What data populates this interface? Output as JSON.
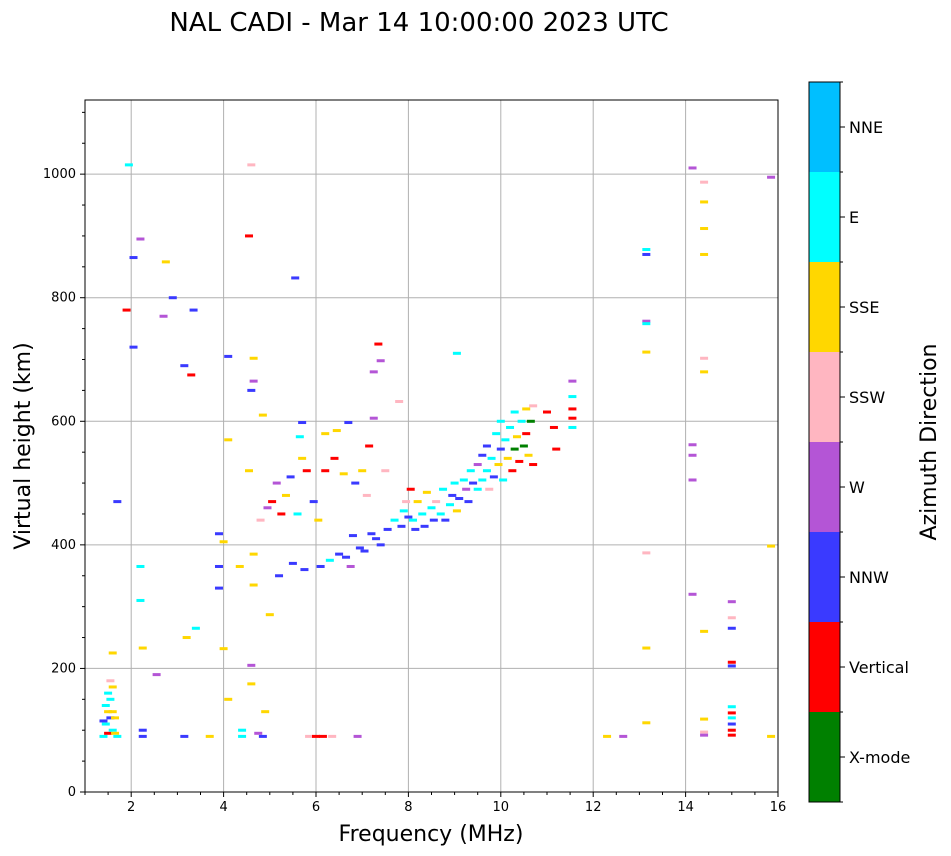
{
  "chart_data": {
    "type": "scatter",
    "title": "NAL CADI - Mar 14 10:00:00 2023 UTC",
    "xlabel": "Frequency (MHz)",
    "ylabel": "Virtual height (km)",
    "xlim": [
      1,
      16
    ],
    "ylim": [
      0,
      1120
    ],
    "xticks": [
      2,
      4,
      6,
      8,
      10,
      12,
      14,
      16
    ],
    "yticks": [
      0,
      200,
      400,
      600,
      800,
      1000
    ],
    "grid": true,
    "colorbar": {
      "label": "Azimuth Direction",
      "categories": [
        {
          "name": "X-mode",
          "color": "#008000"
        },
        {
          "name": "Vertical",
          "color": "#ff0000"
        },
        {
          "name": "NNW",
          "color": "#3a3aff"
        },
        {
          "name": "W",
          "color": "#b455d6"
        },
        {
          "name": "SSW",
          "color": "#ffb6c1"
        },
        {
          "name": "SSE",
          "color": "#ffd700"
        },
        {
          "name": "E",
          "color": "#00ffff"
        },
        {
          "name": "NNE",
          "color": "#00bfff"
        }
      ]
    },
    "echoes": [
      {
        "f": 1.4,
        "h": 90,
        "dir": "E"
      },
      {
        "f": 1.45,
        "h": 110,
        "dir": "E"
      },
      {
        "f": 1.5,
        "h": 130,
        "dir": "SSE"
      },
      {
        "f": 1.55,
        "h": 150,
        "dir": "E"
      },
      {
        "f": 1.6,
        "h": 170,
        "dir": "SSE"
      },
      {
        "f": 1.5,
        "h": 95,
        "dir": "Vertical"
      },
      {
        "f": 1.6,
        "h": 100,
        "dir": "E"
      },
      {
        "f": 1.55,
        "h": 120,
        "dir": "NNW"
      },
      {
        "f": 1.65,
        "h": 95,
        "dir": "SSE"
      },
      {
        "f": 1.45,
        "h": 140,
        "dir": "E"
      },
      {
        "f": 1.6,
        "h": 130,
        "dir": "SSE"
      },
      {
        "f": 1.55,
        "h": 180,
        "dir": "SSW"
      },
      {
        "f": 1.65,
        "h": 120,
        "dir": "SSE"
      },
      {
        "f": 1.7,
        "h": 90,
        "dir": "E"
      },
      {
        "f": 1.5,
        "h": 160,
        "dir": "E"
      },
      {
        "f": 1.4,
        "h": 115,
        "dir": "NNW"
      },
      {
        "f": 1.6,
        "h": 225,
        "dir": "SSE"
      },
      {
        "f": 1.7,
        "h": 470,
        "dir": "NNW"
      },
      {
        "f": 1.9,
        "h": 780,
        "dir": "Vertical"
      },
      {
        "f": 1.95,
        "h": 1015,
        "dir": "E"
      },
      {
        "f": 2.05,
        "h": 865,
        "dir": "NNW"
      },
      {
        "f": 2.05,
        "h": 720,
        "dir": "NNW"
      },
      {
        "f": 2.2,
        "h": 895,
        "dir": "W"
      },
      {
        "f": 2.2,
        "h": 365,
        "dir": "E"
      },
      {
        "f": 2.2,
        "h": 310,
        "dir": "E"
      },
      {
        "f": 2.25,
        "h": 100,
        "dir": "NNW"
      },
      {
        "f": 2.25,
        "h": 90,
        "dir": "NNW"
      },
      {
        "f": 2.25,
        "h": 233,
        "dir": "SSE"
      },
      {
        "f": 2.55,
        "h": 190,
        "dir": "W"
      },
      {
        "f": 2.75,
        "h": 858,
        "dir": "SSE"
      },
      {
        "f": 2.7,
        "h": 770,
        "dir": "W"
      },
      {
        "f": 2.9,
        "h": 800,
        "dir": "NNW"
      },
      {
        "f": 3.15,
        "h": 690,
        "dir": "NNW"
      },
      {
        "f": 3.3,
        "h": 675,
        "dir": "Vertical"
      },
      {
        "f": 3.35,
        "h": 780,
        "dir": "NNW"
      },
      {
        "f": 3.15,
        "h": 90,
        "dir": "NNW"
      },
      {
        "f": 3.2,
        "h": 250,
        "dir": "SSE"
      },
      {
        "f": 3.4,
        "h": 265,
        "dir": "E"
      },
      {
        "f": 3.7,
        "h": 90,
        "dir": "SSE"
      },
      {
        "f": 3.9,
        "h": 418,
        "dir": "NNW"
      },
      {
        "f": 3.9,
        "h": 365,
        "dir": "NNW"
      },
      {
        "f": 3.9,
        "h": 330,
        "dir": "NNW"
      },
      {
        "f": 4.0,
        "h": 405,
        "dir": "SSE"
      },
      {
        "f": 4.0,
        "h": 232,
        "dir": "SSE"
      },
      {
        "f": 4.1,
        "h": 705,
        "dir": "NNW"
      },
      {
        "f": 4.1,
        "h": 570,
        "dir": "SSE"
      },
      {
        "f": 4.1,
        "h": 150,
        "dir": "SSE"
      },
      {
        "f": 4.35,
        "h": 365,
        "dir": "SSE"
      },
      {
        "f": 4.4,
        "h": 100,
        "dir": "E"
      },
      {
        "f": 4.4,
        "h": 90,
        "dir": "E"
      },
      {
        "f": 4.55,
        "h": 900,
        "dir": "Vertical"
      },
      {
        "f": 4.6,
        "h": 1015,
        "dir": "SSW"
      },
      {
        "f": 4.6,
        "h": 650,
        "dir": "NNW"
      },
      {
        "f": 4.65,
        "h": 665,
        "dir": "W"
      },
      {
        "f": 4.65,
        "h": 702,
        "dir": "SSE"
      },
      {
        "f": 4.55,
        "h": 520,
        "dir": "SSE"
      },
      {
        "f": 4.6,
        "h": 205,
        "dir": "W"
      },
      {
        "f": 4.6,
        "h": 175,
        "dir": "SSE"
      },
      {
        "f": 4.65,
        "h": 385,
        "dir": "SSE"
      },
      {
        "f": 4.65,
        "h": 335,
        "dir": "SSE"
      },
      {
        "f": 4.75,
        "h": 95,
        "dir": "W"
      },
      {
        "f": 4.8,
        "h": 440,
        "dir": "SSW"
      },
      {
        "f": 4.85,
        "h": 90,
        "dir": "NNW"
      },
      {
        "f": 4.85,
        "h": 610,
        "dir": "SSE"
      },
      {
        "f": 4.9,
        "h": 130,
        "dir": "SSE"
      },
      {
        "f": 4.95,
        "h": 460,
        "dir": "W"
      },
      {
        "f": 5.0,
        "h": 287,
        "dir": "SSE"
      },
      {
        "f": 5.05,
        "h": 470,
        "dir": "Vertical"
      },
      {
        "f": 5.15,
        "h": 500,
        "dir": "W"
      },
      {
        "f": 5.2,
        "h": 350,
        "dir": "NNW"
      },
      {
        "f": 5.25,
        "h": 450,
        "dir": "Vertical"
      },
      {
        "f": 5.35,
        "h": 480,
        "dir": "SSE"
      },
      {
        "f": 5.45,
        "h": 510,
        "dir": "NNW"
      },
      {
        "f": 5.5,
        "h": 370,
        "dir": "NNW"
      },
      {
        "f": 5.55,
        "h": 832,
        "dir": "NNW"
      },
      {
        "f": 5.6,
        "h": 450,
        "dir": "E"
      },
      {
        "f": 5.65,
        "h": 575,
        "dir": "E"
      },
      {
        "f": 5.7,
        "h": 540,
        "dir": "SSE"
      },
      {
        "f": 5.7,
        "h": 598,
        "dir": "NNW"
      },
      {
        "f": 5.75,
        "h": 360,
        "dir": "NNW"
      },
      {
        "f": 5.8,
        "h": 520,
        "dir": "Vertical"
      },
      {
        "f": 5.85,
        "h": 90,
        "dir": "SSW"
      },
      {
        "f": 5.95,
        "h": 470,
        "dir": "NNW"
      },
      {
        "f": 6.0,
        "h": 90,
        "dir": "Vertical"
      },
      {
        "f": 6.05,
        "h": 440,
        "dir": "SSE"
      },
      {
        "f": 6.1,
        "h": 365,
        "dir": "NNW"
      },
      {
        "f": 6.15,
        "h": 90,
        "dir": "Vertical"
      },
      {
        "f": 6.2,
        "h": 520,
        "dir": "Vertical"
      },
      {
        "f": 6.2,
        "h": 580,
        "dir": "SSE"
      },
      {
        "f": 6.3,
        "h": 375,
        "dir": "E"
      },
      {
        "f": 6.35,
        "h": 90,
        "dir": "SSW"
      },
      {
        "f": 6.4,
        "h": 540,
        "dir": "Vertical"
      },
      {
        "f": 6.45,
        "h": 585,
        "dir": "SSE"
      },
      {
        "f": 6.5,
        "h": 385,
        "dir": "NNW"
      },
      {
        "f": 6.6,
        "h": 515,
        "dir": "SSE"
      },
      {
        "f": 6.65,
        "h": 380,
        "dir": "NNW"
      },
      {
        "f": 6.7,
        "h": 598,
        "dir": "NNW"
      },
      {
        "f": 6.75,
        "h": 365,
        "dir": "W"
      },
      {
        "f": 6.8,
        "h": 415,
        "dir": "NNW"
      },
      {
        "f": 6.85,
        "h": 500,
        "dir": "NNW"
      },
      {
        "f": 6.9,
        "h": 90,
        "dir": "W"
      },
      {
        "f": 6.95,
        "h": 395,
        "dir": "NNW"
      },
      {
        "f": 7.0,
        "h": 520,
        "dir": "SSE"
      },
      {
        "f": 7.05,
        "h": 390,
        "dir": "NNW"
      },
      {
        "f": 7.1,
        "h": 480,
        "dir": "SSW"
      },
      {
        "f": 7.15,
        "h": 560,
        "dir": "Vertical"
      },
      {
        "f": 7.2,
        "h": 418,
        "dir": "NNW"
      },
      {
        "f": 7.25,
        "h": 680,
        "dir": "W"
      },
      {
        "f": 7.25,
        "h": 605,
        "dir": "W"
      },
      {
        "f": 7.3,
        "h": 410,
        "dir": "NNW"
      },
      {
        "f": 7.35,
        "h": 725,
        "dir": "Vertical"
      },
      {
        "f": 7.4,
        "h": 698,
        "dir": "W"
      },
      {
        "f": 7.4,
        "h": 400,
        "dir": "NNW"
      },
      {
        "f": 7.5,
        "h": 520,
        "dir": "SSW"
      },
      {
        "f": 7.55,
        "h": 425,
        "dir": "NNW"
      },
      {
        "f": 7.7,
        "h": 440,
        "dir": "E"
      },
      {
        "f": 7.8,
        "h": 632,
        "dir": "SSW"
      },
      {
        "f": 7.85,
        "h": 430,
        "dir": "NNW"
      },
      {
        "f": 7.9,
        "h": 455,
        "dir": "E"
      },
      {
        "f": 7.95,
        "h": 470,
        "dir": "SSW"
      },
      {
        "f": 8.0,
        "h": 445,
        "dir": "NNW"
      },
      {
        "f": 8.05,
        "h": 490,
        "dir": "Vertical"
      },
      {
        "f": 8.1,
        "h": 440,
        "dir": "E"
      },
      {
        "f": 8.15,
        "h": 425,
        "dir": "NNW"
      },
      {
        "f": 8.2,
        "h": 470,
        "dir": "SSE"
      },
      {
        "f": 8.3,
        "h": 450,
        "dir": "E"
      },
      {
        "f": 8.35,
        "h": 430,
        "dir": "NNW"
      },
      {
        "f": 8.4,
        "h": 485,
        "dir": "SSE"
      },
      {
        "f": 8.5,
        "h": 460,
        "dir": "E"
      },
      {
        "f": 8.55,
        "h": 440,
        "dir": "NNW"
      },
      {
        "f": 8.6,
        "h": 470,
        "dir": "SSW"
      },
      {
        "f": 8.7,
        "h": 450,
        "dir": "E"
      },
      {
        "f": 8.75,
        "h": 490,
        "dir": "E"
      },
      {
        "f": 8.8,
        "h": 440,
        "dir": "NNW"
      },
      {
        "f": 8.9,
        "h": 465,
        "dir": "E"
      },
      {
        "f": 8.95,
        "h": 480,
        "dir": "NNW"
      },
      {
        "f": 9.0,
        "h": 500,
        "dir": "E"
      },
      {
        "f": 9.05,
        "h": 455,
        "dir": "SSE"
      },
      {
        "f": 9.05,
        "h": 710,
        "dir": "E"
      },
      {
        "f": 9.1,
        "h": 475,
        "dir": "NNW"
      },
      {
        "f": 9.2,
        "h": 505,
        "dir": "E"
      },
      {
        "f": 9.25,
        "h": 490,
        "dir": "W"
      },
      {
        "f": 9.3,
        "h": 470,
        "dir": "NNW"
      },
      {
        "f": 9.35,
        "h": 520,
        "dir": "E"
      },
      {
        "f": 9.4,
        "h": 500,
        "dir": "NNW"
      },
      {
        "f": 9.5,
        "h": 530,
        "dir": "W"
      },
      {
        "f": 9.5,
        "h": 490,
        "dir": "E"
      },
      {
        "f": 9.6,
        "h": 545,
        "dir": "NNW"
      },
      {
        "f": 9.6,
        "h": 505,
        "dir": "E"
      },
      {
        "f": 9.7,
        "h": 520,
        "dir": "E"
      },
      {
        "f": 9.7,
        "h": 560,
        "dir": "NNW"
      },
      {
        "f": 9.75,
        "h": 490,
        "dir": "SSW"
      },
      {
        "f": 9.8,
        "h": 540,
        "dir": "E"
      },
      {
        "f": 9.85,
        "h": 510,
        "dir": "NNW"
      },
      {
        "f": 9.9,
        "h": 580,
        "dir": "E"
      },
      {
        "f": 9.95,
        "h": 530,
        "dir": "SSE"
      },
      {
        "f": 10.0,
        "h": 600,
        "dir": "E"
      },
      {
        "f": 10.0,
        "h": 555,
        "dir": "NNW"
      },
      {
        "f": 10.05,
        "h": 505,
        "dir": "E"
      },
      {
        "f": 10.1,
        "h": 570,
        "dir": "E"
      },
      {
        "f": 10.15,
        "h": 540,
        "dir": "SSE"
      },
      {
        "f": 10.2,
        "h": 590,
        "dir": "E"
      },
      {
        "f": 10.25,
        "h": 520,
        "dir": "Vertical"
      },
      {
        "f": 10.3,
        "h": 615,
        "dir": "E"
      },
      {
        "f": 10.3,
        "h": 555,
        "dir": "X-mode"
      },
      {
        "f": 10.35,
        "h": 575,
        "dir": "SSE"
      },
      {
        "f": 10.4,
        "h": 535,
        "dir": "Vertical"
      },
      {
        "f": 10.45,
        "h": 600,
        "dir": "E"
      },
      {
        "f": 10.5,
        "h": 560,
        "dir": "X-mode"
      },
      {
        "f": 10.55,
        "h": 620,
        "dir": "SSE"
      },
      {
        "f": 10.55,
        "h": 580,
        "dir": "Vertical"
      },
      {
        "f": 10.6,
        "h": 545,
        "dir": "SSE"
      },
      {
        "f": 10.65,
        "h": 600,
        "dir": "X-mode"
      },
      {
        "f": 10.7,
        "h": 625,
        "dir": "SSW"
      },
      {
        "f": 10.7,
        "h": 530,
        "dir": "Vertical"
      },
      {
        "f": 11.0,
        "h": 615,
        "dir": "Vertical"
      },
      {
        "f": 11.15,
        "h": 590,
        "dir": "Vertical"
      },
      {
        "f": 11.2,
        "h": 555,
        "dir": "Vertical"
      },
      {
        "f": 11.55,
        "h": 665,
        "dir": "W"
      },
      {
        "f": 11.55,
        "h": 640,
        "dir": "E"
      },
      {
        "f": 11.55,
        "h": 620,
        "dir": "Vertical"
      },
      {
        "f": 11.55,
        "h": 605,
        "dir": "Vertical"
      },
      {
        "f": 11.55,
        "h": 590,
        "dir": "E"
      },
      {
        "f": 12.3,
        "h": 90,
        "dir": "SSE"
      },
      {
        "f": 12.65,
        "h": 90,
        "dir": "W"
      },
      {
        "f": 13.15,
        "h": 878,
        "dir": "E"
      },
      {
        "f": 13.15,
        "h": 870,
        "dir": "NNW"
      },
      {
        "f": 13.15,
        "h": 762,
        "dir": "W"
      },
      {
        "f": 13.15,
        "h": 758,
        "dir": "E"
      },
      {
        "f": 13.15,
        "h": 712,
        "dir": "SSE"
      },
      {
        "f": 13.15,
        "h": 387,
        "dir": "SSW"
      },
      {
        "f": 13.15,
        "h": 233,
        "dir": "SSE"
      },
      {
        "f": 13.15,
        "h": 112,
        "dir": "SSE"
      },
      {
        "f": 14.15,
        "h": 1010,
        "dir": "W"
      },
      {
        "f": 14.15,
        "h": 562,
        "dir": "W"
      },
      {
        "f": 14.15,
        "h": 545,
        "dir": "W"
      },
      {
        "f": 14.15,
        "h": 505,
        "dir": "W"
      },
      {
        "f": 14.15,
        "h": 320,
        "dir": "W"
      },
      {
        "f": 14.4,
        "h": 987,
        "dir": "SSW"
      },
      {
        "f": 14.4,
        "h": 955,
        "dir": "SSE"
      },
      {
        "f": 14.4,
        "h": 912,
        "dir": "SSE"
      },
      {
        "f": 14.4,
        "h": 870,
        "dir": "SSE"
      },
      {
        "f": 14.4,
        "h": 702,
        "dir": "SSW"
      },
      {
        "f": 14.4,
        "h": 680,
        "dir": "SSE"
      },
      {
        "f": 14.4,
        "h": 260,
        "dir": "SSE"
      },
      {
        "f": 14.4,
        "h": 118,
        "dir": "SSE"
      },
      {
        "f": 14.4,
        "h": 97,
        "dir": "SSW"
      },
      {
        "f": 14.4,
        "h": 92,
        "dir": "W"
      },
      {
        "f": 15.0,
        "h": 308,
        "dir": "W"
      },
      {
        "f": 15.0,
        "h": 282,
        "dir": "SSW"
      },
      {
        "f": 15.0,
        "h": 265,
        "dir": "NNW"
      },
      {
        "f": 15.0,
        "h": 210,
        "dir": "Vertical"
      },
      {
        "f": 15.0,
        "h": 204,
        "dir": "NNW"
      },
      {
        "f": 15.0,
        "h": 138,
        "dir": "E"
      },
      {
        "f": 15.0,
        "h": 128,
        "dir": "Vertical"
      },
      {
        "f": 15.0,
        "h": 120,
        "dir": "E"
      },
      {
        "f": 15.0,
        "h": 110,
        "dir": "NNW"
      },
      {
        "f": 15.0,
        "h": 100,
        "dir": "Vertical"
      },
      {
        "f": 15.0,
        "h": 92,
        "dir": "Vertical"
      },
      {
        "f": 15.85,
        "h": 995,
        "dir": "W"
      },
      {
        "f": 15.85,
        "h": 398,
        "dir": "SSE"
      },
      {
        "f": 15.85,
        "h": 90,
        "dir": "SSE"
      }
    ]
  }
}
